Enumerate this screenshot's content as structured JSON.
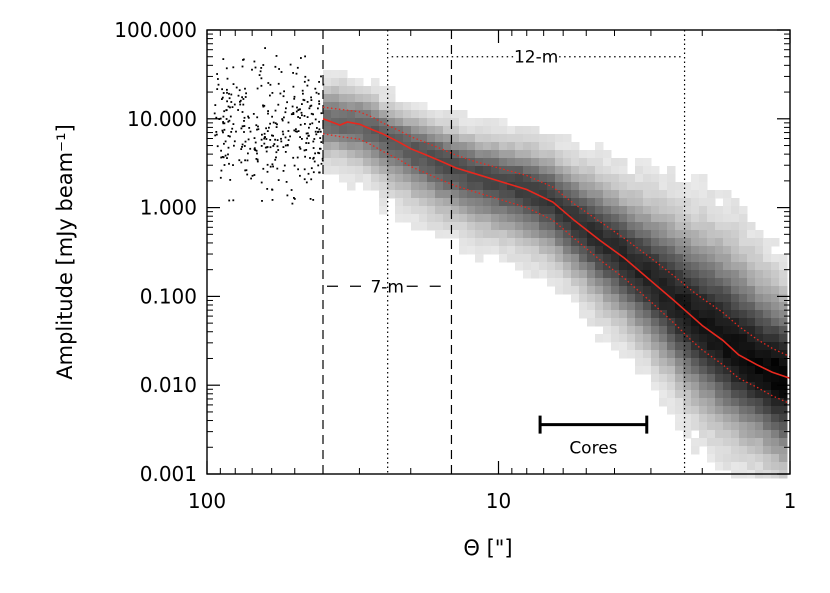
{
  "chart_data": {
    "type": "scatter",
    "title": "",
    "xlabel": "Θ [\"]",
    "ylabel": "Amplitude [mJy beam⁻¹]",
    "x_scale": "log",
    "y_scale": "log",
    "x_axis_reversed": true,
    "xlim": [
      100,
      1
    ],
    "ylim": [
      0.001,
      100
    ],
    "x_ticks": [
      {
        "value": 100,
        "label": "100"
      },
      {
        "value": 10,
        "label": "10"
      },
      {
        "value": 1,
        "label": "1"
      }
    ],
    "y_ticks": [
      {
        "value": 100,
        "label": "100.000"
      },
      {
        "value": 10,
        "label": "10.000"
      },
      {
        "value": 1,
        "label": "1.000"
      },
      {
        "value": 0.1,
        "label": "0.100"
      },
      {
        "value": 0.01,
        "label": "0.010"
      },
      {
        "value": 0.001,
        "label": "0.001"
      }
    ],
    "grid": false,
    "colors": {
      "median": "#e8281e",
      "density": "#000000",
      "points": "#000000",
      "lines": "#000000"
    },
    "median": {
      "x": [
        40,
        35,
        33,
        30,
        27,
        25,
        22,
        20,
        18,
        16,
        14,
        12,
        10,
        8,
        6.5,
        5.5,
        4.5,
        3.7,
        3.0,
        2.5,
        2.2,
        2.0,
        1.7,
        1.5,
        1.3,
        1.15,
        1.0
      ],
      "y": [
        10,
        8.5,
        9.2,
        8.7,
        7.5,
        6.8,
        5.5,
        4.6,
        4.0,
        3.4,
        2.8,
        2.4,
        2.0,
        1.6,
        1.15,
        0.72,
        0.43,
        0.27,
        0.15,
        0.09,
        0.062,
        0.047,
        0.032,
        0.022,
        0.017,
        0.014,
        0.012
      ]
    },
    "band_upper": {
      "x": [
        40,
        35,
        30,
        27,
        25,
        22,
        20,
        18,
        16,
        14,
        12,
        10,
        8,
        6.5,
        5.5,
        4.5,
        3.7,
        3.0,
        2.5,
        2.2,
        2.0,
        1.7,
        1.5,
        1.3,
        1.15,
        1.0
      ],
      "y": [
        13.5,
        12.8,
        12.0,
        10.4,
        9.0,
        7.4,
        6.3,
        5.5,
        4.7,
        3.9,
        3.3,
        2.8,
        2.3,
        1.7,
        1.1,
        0.7,
        0.45,
        0.27,
        0.17,
        0.12,
        0.095,
        0.066,
        0.046,
        0.033,
        0.026,
        0.021
      ]
    },
    "band_lower": {
      "x": [
        40,
        35,
        30,
        27,
        25,
        22,
        20,
        18,
        16,
        14,
        12,
        10,
        8,
        6.5,
        5.5,
        4.5,
        3.7,
        3.0,
        2.5,
        2.2,
        2.0,
        1.7,
        1.5,
        1.3,
        1.15,
        1.0
      ],
      "y": [
        6.8,
        6.3,
        5.9,
        5.0,
        4.3,
        3.5,
        2.9,
        2.5,
        2.1,
        1.75,
        1.5,
        1.25,
        1.0,
        0.72,
        0.45,
        0.26,
        0.16,
        0.087,
        0.05,
        0.033,
        0.025,
        0.017,
        0.012,
        0.0095,
        0.0076,
        0.0062
      ]
    },
    "vertical_lines": [
      {
        "x": 40,
        "style": "dashed"
      },
      {
        "x": 14.5,
        "style": "dashed"
      },
      {
        "x": 24,
        "style": "dotted"
      },
      {
        "x": 2.3,
        "style": "dotted"
      }
    ],
    "range_markers": [
      {
        "label": "7-m",
        "from": 40,
        "to": 14.5,
        "y": 0.13,
        "style": "dashed"
      },
      {
        "label": "12-m",
        "from": 24,
        "to": 2.3,
        "y": 50,
        "style": "dotted"
      }
    ],
    "cores_bar": {
      "label": "Cores",
      "from": 7.2,
      "to": 3.1,
      "y": 0.0036
    }
  }
}
